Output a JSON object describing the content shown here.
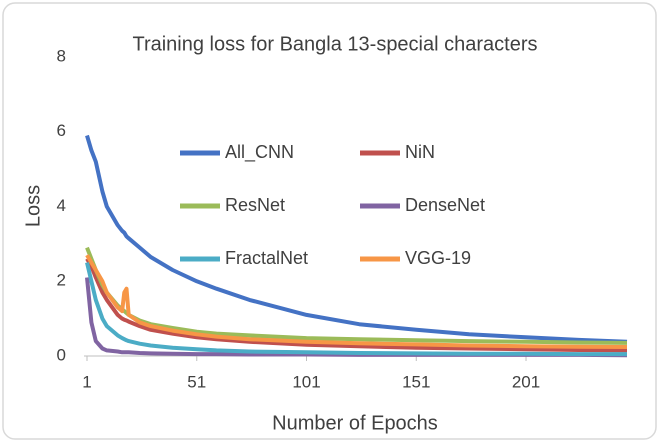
{
  "chart_data": {
    "type": "line",
    "title": "Training loss for Bangla 13-special characters",
    "x_label": "Number of Epochs",
    "y_label": "Loss",
    "x": [
      1,
      3,
      5,
      8,
      10,
      15,
      17,
      18,
      19,
      20,
      25,
      30,
      40,
      51,
      60,
      75,
      101,
      125,
      151,
      175,
      201,
      225,
      247
    ],
    "xlim": [
      1,
      247
    ],
    "xticks": [
      1,
      51,
      101,
      151,
      201
    ],
    "ylim": [
      0,
      8
    ],
    "yticks": [
      0,
      2,
      4,
      6,
      8
    ],
    "grid": false,
    "series": [
      {
        "name": "All_CNN",
        "color": "#4472c4",
        "values": [
          5.9,
          5.5,
          5.2,
          4.4,
          4.0,
          3.5,
          3.35,
          3.3,
          3.2,
          3.15,
          2.9,
          2.65,
          2.3,
          2.0,
          1.8,
          1.5,
          1.1,
          0.85,
          0.7,
          0.58,
          0.5,
          0.43,
          0.38
        ]
      },
      {
        "name": "NiN",
        "color": "#c0504d",
        "values": [
          2.6,
          2.4,
          2.1,
          1.7,
          1.5,
          1.1,
          1.0,
          0.97,
          0.95,
          0.92,
          0.8,
          0.7,
          0.6,
          0.5,
          0.45,
          0.38,
          0.3,
          0.26,
          0.22,
          0.2,
          0.18,
          0.16,
          0.15
        ]
      },
      {
        "name": "ResNet",
        "color": "#9bbb59",
        "values": [
          2.9,
          2.6,
          2.3,
          1.9,
          1.7,
          1.35,
          1.25,
          1.2,
          1.15,
          1.1,
          0.95,
          0.85,
          0.75,
          0.65,
          0.6,
          0.55,
          0.48,
          0.45,
          0.42,
          0.4,
          0.38,
          0.36,
          0.35
        ]
      },
      {
        "name": "DenseNet",
        "color": "#8064a2",
        "values": [
          2.1,
          0.9,
          0.4,
          0.2,
          0.15,
          0.12,
          0.1,
          0.1,
          0.1,
          0.1,
          0.08,
          0.07,
          0.06,
          0.05,
          0.05,
          0.04,
          0.04,
          0.03,
          0.03,
          0.03,
          0.03,
          0.03,
          0.02
        ]
      },
      {
        "name": "FractalNet",
        "color": "#4bacc6",
        "values": [
          2.5,
          2.0,
          1.5,
          1.0,
          0.8,
          0.55,
          0.48,
          0.45,
          0.42,
          0.4,
          0.33,
          0.28,
          0.22,
          0.18,
          0.15,
          0.12,
          0.1,
          0.08,
          0.07,
          0.06,
          0.06,
          0.05,
          0.05
        ]
      },
      {
        "name": "VGG-19",
        "color": "#f79646",
        "values": [
          2.7,
          2.5,
          2.3,
          2.0,
          1.7,
          1.3,
          1.2,
          1.7,
          1.8,
          1.1,
          0.9,
          0.8,
          0.68,
          0.58,
          0.52,
          0.45,
          0.38,
          0.34,
          0.31,
          0.28,
          0.26,
          0.25,
          0.24
        ]
      }
    ]
  }
}
